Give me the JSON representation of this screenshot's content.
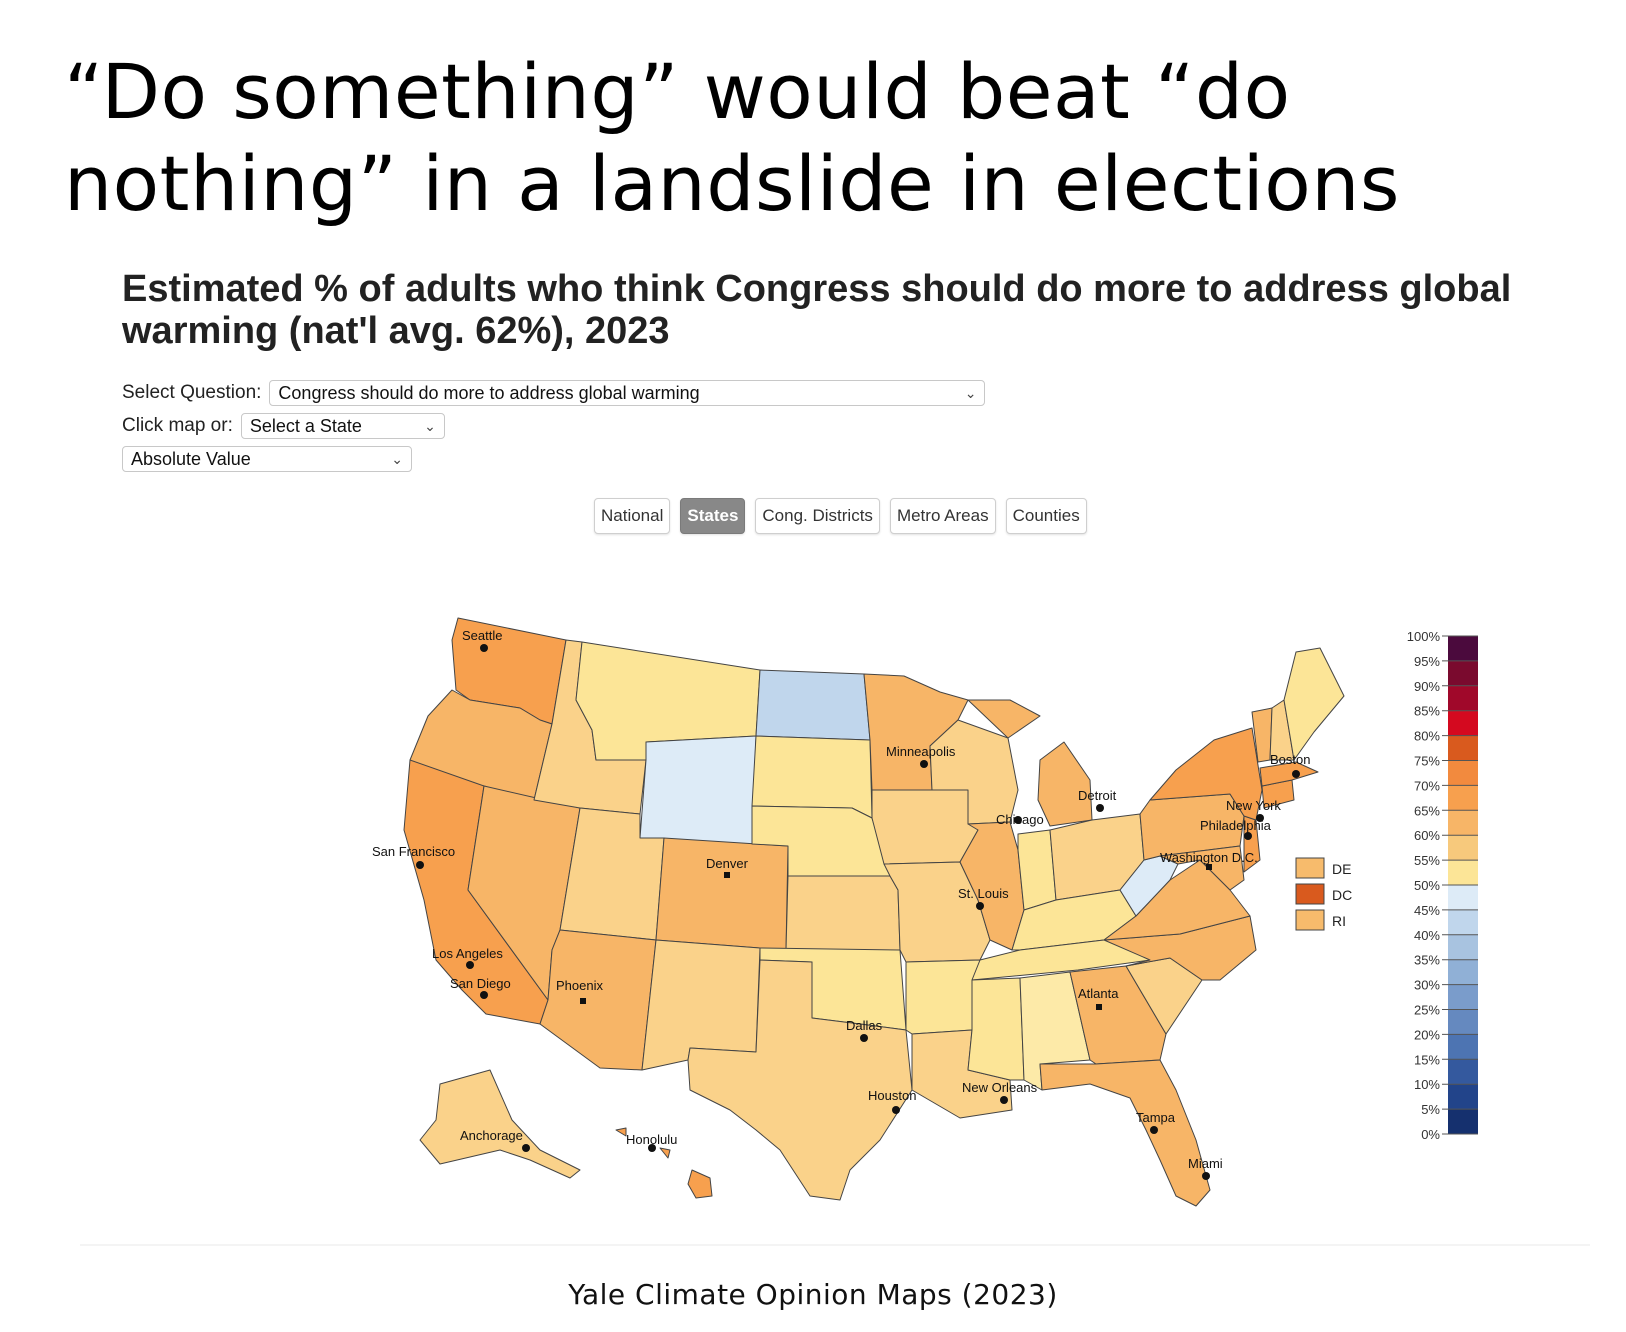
{
  "headline": {
    "line1": "“Do something” would beat “do",
    "line2": "nothing” in a landslide in elections"
  },
  "map_title": {
    "line1": "Estimated % of adults who think Congress should do more to address global",
    "line2": "warming (nat'l avg. 62%), 2023"
  },
  "controls": {
    "question_label": "Select Question:",
    "question_value": "Congress should do more to address global warming",
    "click_label": "Click map or:",
    "state_value": "Select a State",
    "mode_value": "Absolute Value"
  },
  "tabs": [
    {
      "label": "National",
      "active": false
    },
    {
      "label": "States",
      "active": true
    },
    {
      "label": "Cong. Districts",
      "active": false
    },
    {
      "label": "Metro Areas",
      "active": false
    },
    {
      "label": "Counties",
      "active": false
    }
  ],
  "cities": {
    "seattle": "Seattle",
    "san_francisco": "San Francisco",
    "los_angeles": "Los Angeles",
    "san_diego": "San Diego",
    "phoenix": "Phoenix",
    "denver": "Denver",
    "minneapolis": "Minneapolis",
    "chicago": "Chicago",
    "detroit": "Detroit",
    "st_louis": "St. Louis",
    "dallas": "Dallas",
    "houston": "Houston",
    "new_orleans": "New Orleans",
    "atlanta": "Atlanta",
    "tampa": "Tampa",
    "miami": "Miami",
    "boston": "Boston",
    "new_york": "New York",
    "philadelphia": "Philadelphia",
    "washington": "Washington D.C.",
    "anchorage": "Anchorage",
    "honolulu": "Honolulu"
  },
  "small_states": [
    {
      "label": "DE",
      "color": "#f7bb6c"
    },
    {
      "label": "DC",
      "color": "#d95a1e"
    },
    {
      "label": "RI",
      "color": "#f7bb6c"
    }
  ],
  "color_scale": {
    "ticks": [
      "100%",
      "95%",
      "90%",
      "85%",
      "80%",
      "75%",
      "70%",
      "65%",
      "60%",
      "55%",
      "50%",
      "45%",
      "40%",
      "35%",
      "30%",
      "25%",
      "20%",
      "15%",
      "10%",
      "5%",
      "0%"
    ],
    "colors": [
      "#4b0a3d",
      "#7a0a2e",
      "#a0082a",
      "#d4091f",
      "#d95a1e",
      "#f28a3e",
      "#f7a04e",
      "#f7b567",
      "#f7c97c",
      "#fce597",
      "#ddebf7",
      "#c0d6ec",
      "#a8c3e0",
      "#90b0d6",
      "#7a9ccb",
      "#6589bf",
      "#4d74b2",
      "#34599e",
      "#22448a",
      "#15306e"
    ]
  },
  "source": "Yale Climate Opinion Maps (2023)"
}
